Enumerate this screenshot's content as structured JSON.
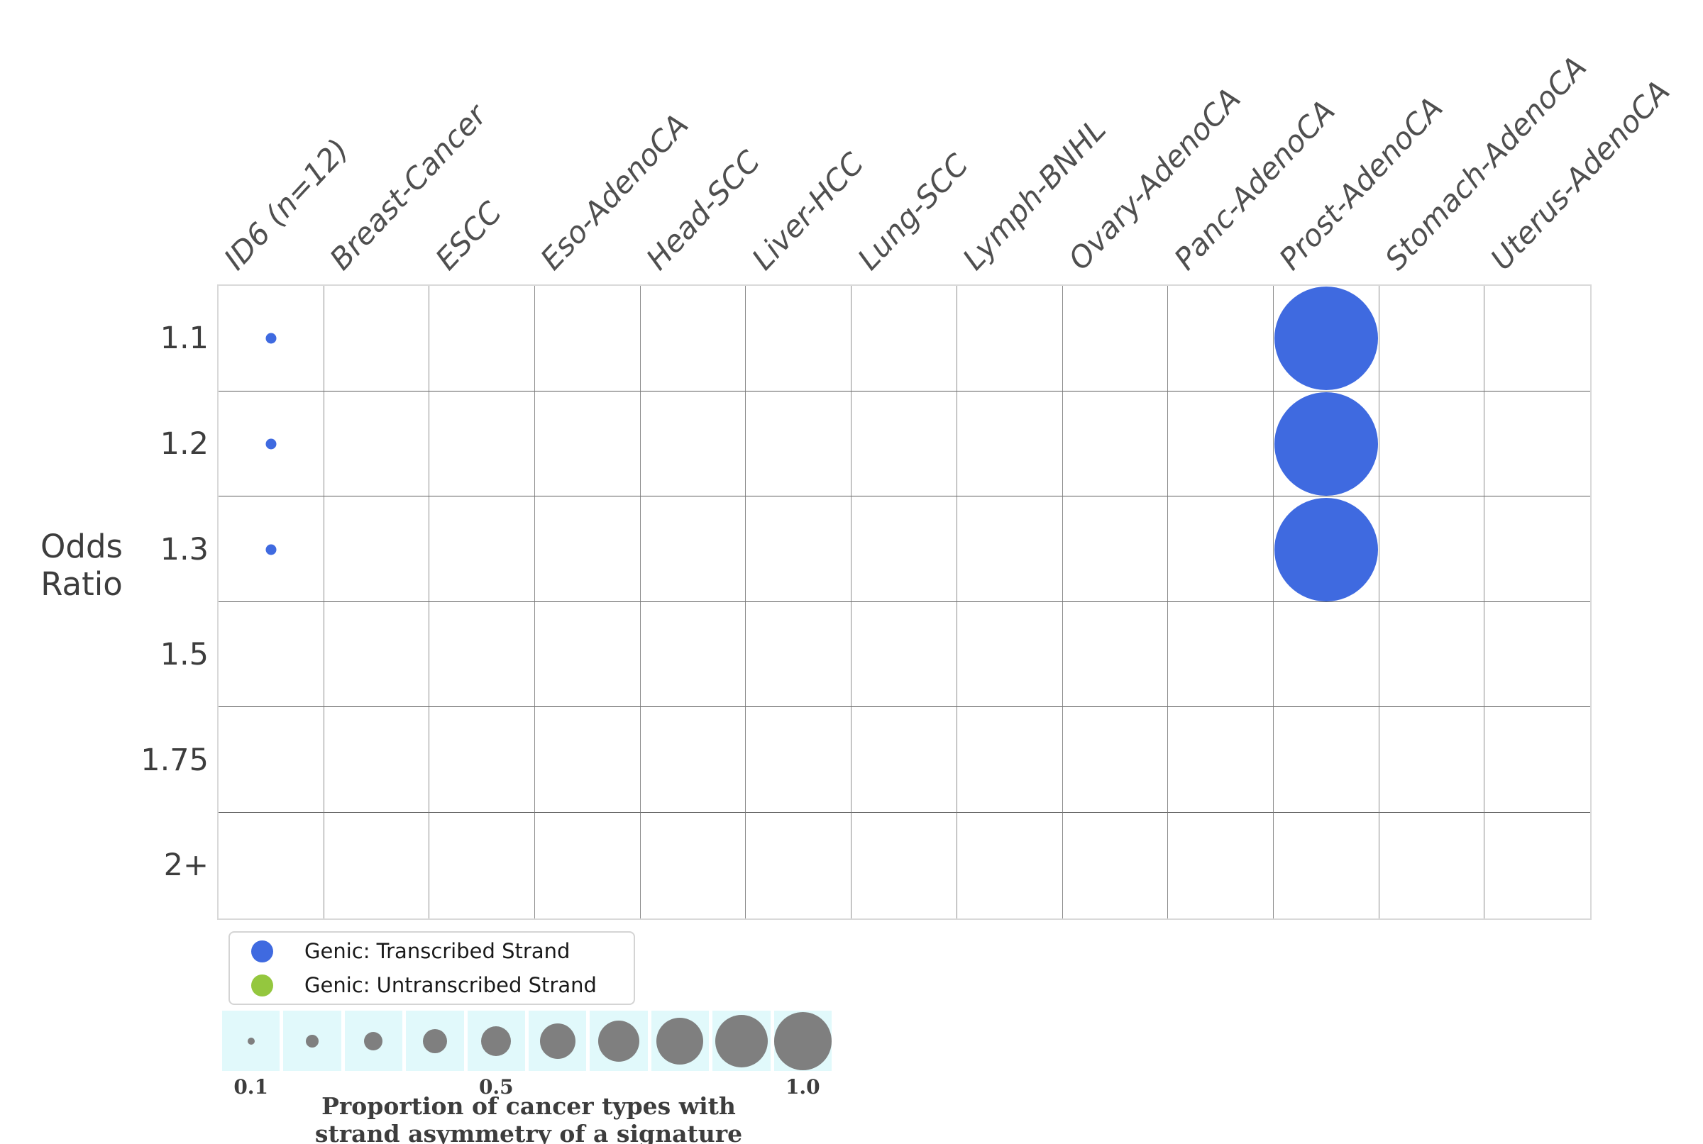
{
  "figure": {
    "background": "#ffffff",
    "y_axis": {
      "title_lines": [
        "Odds",
        "Ratio"
      ],
      "tick_labels": [
        "1.1",
        "1.2",
        "1.3",
        "1.5",
        "1.75",
        "2+"
      ]
    },
    "x_axis": {
      "tick_labels": [
        "ID6 (n=12)",
        "Breast-Cancer",
        "ESCC",
        "Eso-AdenoCA",
        "Head-SCC",
        "Liver-HCC",
        "Lung-SCC",
        "Lymph-BNHL",
        "Ovary-AdenoCA",
        "Panc-AdenoCA",
        "Prost-AdenoCA",
        "Stomach-AdenoCA",
        "Uterus-AdenoCA"
      ]
    },
    "legend": {
      "items": [
        {
          "label": "Genic: Transcribed Strand",
          "color": "#3f6ae0"
        },
        {
          "label": "Genic: Untranscribed Strand",
          "color": "#94c73e"
        }
      ]
    },
    "size_legend": {
      "band_color": "#e1f9fb",
      "bubble_color": "#7f7f7f",
      "proportions": [
        0.1,
        0.2,
        0.3,
        0.4,
        0.5,
        0.6,
        0.7,
        0.8,
        0.9,
        1.0
      ],
      "tick_labels": [
        "0.1",
        "0.5",
        "1.0"
      ],
      "tick_positions": [
        0,
        4,
        9
      ],
      "caption_lines": [
        "Proportion of cancer types with",
        "strand asymmetry of a signature"
      ]
    }
  },
  "chart_data": {
    "type": "scatter",
    "subtype": "bubble-matrix",
    "title": "",
    "xlabel": "",
    "ylabel": "Odds Ratio",
    "x_categories": [
      "ID6 (n=12)",
      "Breast-Cancer",
      "ESCC",
      "Eso-AdenoCA",
      "Head-SCC",
      "Liver-HCC",
      "Lung-SCC",
      "Lymph-BNHL",
      "Ovary-AdenoCA",
      "Panc-AdenoCA",
      "Prost-AdenoCA",
      "Stomach-AdenoCA",
      "Uterus-AdenoCA"
    ],
    "y_categories": [
      "1.1",
      "1.2",
      "1.3",
      "1.5",
      "1.75",
      "2+"
    ],
    "grid": true,
    "legend_position": "bottom-left",
    "size_encoding": "Proportion of cancer types with strand asymmetry of a signature",
    "series": [
      {
        "name": "Genic: Transcribed Strand",
        "color": "#3f6ae0",
        "points": [
          {
            "x": "ID6 (n=12)",
            "y": "1.1",
            "proportion": 0.1
          },
          {
            "x": "ID6 (n=12)",
            "y": "1.2",
            "proportion": 0.1
          },
          {
            "x": "ID6 (n=12)",
            "y": "1.3",
            "proportion": 0.1
          },
          {
            "x": "Prost-AdenoCA",
            "y": "1.1",
            "proportion": 1.0
          },
          {
            "x": "Prost-AdenoCA",
            "y": "1.2",
            "proportion": 1.0
          },
          {
            "x": "Prost-AdenoCA",
            "y": "1.3",
            "proportion": 1.0
          }
        ]
      },
      {
        "name": "Genic: Untranscribed Strand",
        "color": "#94c73e",
        "points": []
      }
    ]
  }
}
